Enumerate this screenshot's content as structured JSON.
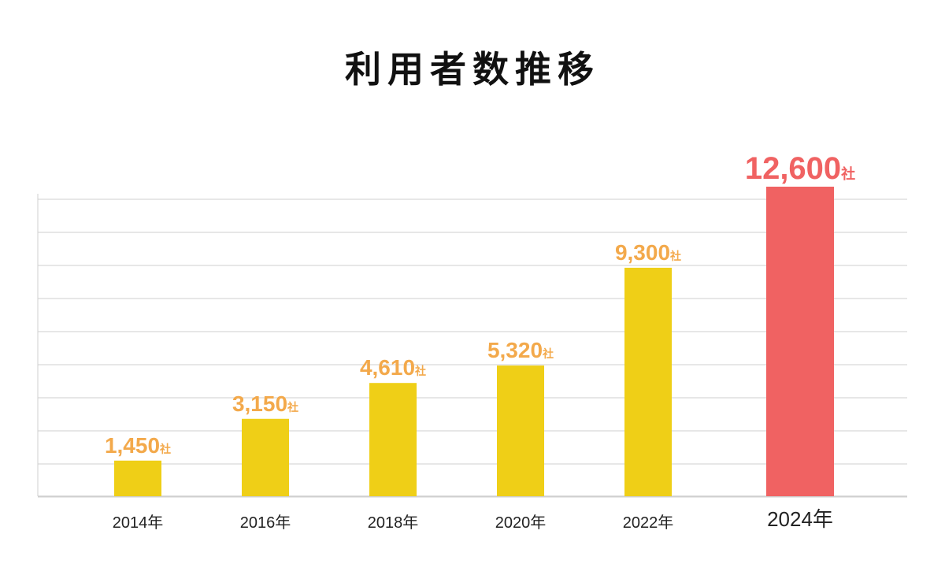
{
  "page": {
    "title": "利用者数推移"
  },
  "colors": {
    "bar": "#efcf17",
    "highlight_bar": "#f06262",
    "label": "#f3a94b",
    "grid": "#cfcfcf",
    "axis_text": "#222222"
  },
  "chart_data": {
    "type": "bar",
    "title": "利用者数推移",
    "categories": [
      "2014年",
      "2016年",
      "2018年",
      "2020年",
      "2022年",
      "2024年"
    ],
    "values": [
      1450,
      3150,
      4610,
      5320,
      9300,
      12600
    ],
    "value_labels": [
      "1,450",
      "3,150",
      "4,610",
      "5,320",
      "9,300",
      "12,600"
    ],
    "unit": "社",
    "highlight_index": 5,
    "ylim": [
      0,
      12600
    ],
    "grid": true
  }
}
